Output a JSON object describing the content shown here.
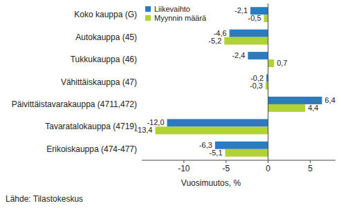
{
  "chart_data": {
    "type": "bar",
    "orientation": "horizontal",
    "data_labels": true,
    "grid": false,
    "legend": "top-left",
    "categories": [
      "Koko kauppa (G)",
      "Autokauppa (45)",
      "Tukkukauppa (46)",
      "Vähittäiskauppa (47)",
      "Päivittäistavarakauppa (4711,472)",
      "Tavaratalokauppa (4719)",
      "Erikoiskauppa (474-477)"
    ],
    "series": [
      {
        "name": "Liikevaihto",
        "color": "#2b7bc0",
        "values": [
          -2.1,
          -4.6,
          -2.4,
          -0.2,
          6.4,
          -12.0,
          -6.3
        ],
        "value_labels": [
          "-2,1",
          "-4,6",
          "-2,4",
          "-0,2",
          "6,4",
          "-12,0",
          "-6,3"
        ]
      },
      {
        "name": "Myynnin määrä",
        "color": "#b1d235",
        "values": [
          -0.5,
          -5.2,
          0.7,
          -0.3,
          4.4,
          -13.4,
          -5.1
        ],
        "value_labels": [
          "-0,5",
          "-5,2",
          "0,7",
          "-0,3",
          "4,4",
          "-13,4",
          "-5,1"
        ]
      }
    ],
    "x_label": "Vuosimuutos, %",
    "source": "Lähde: Tilastokeskus",
    "xlim": [
      -15,
      8
    ],
    "xticks": [
      -10,
      -5,
      0,
      5
    ]
  }
}
